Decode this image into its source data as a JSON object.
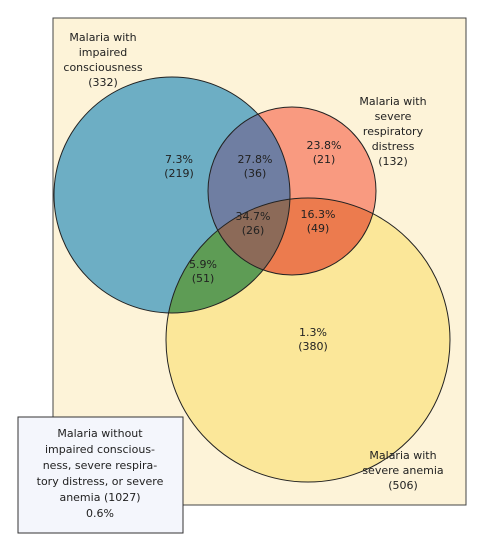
{
  "sets": [
    {
      "lines": [
        "Malaria with",
        "impaired",
        "consciousness",
        "(332)"
      ]
    },
    {
      "lines": [
        "Malaria with",
        "severe",
        "respiratory",
        "distress",
        "(132)"
      ]
    },
    {
      "lines": [
        "Malaria with",
        "severe anemia",
        "(506)"
      ]
    }
  ],
  "regions": [
    {
      "percent": "7.3%",
      "count": "(219)"
    },
    {
      "percent": "27.8%",
      "count": "(36)"
    },
    {
      "percent": "23.8%",
      "count": "(21)"
    },
    {
      "percent": "34.7%",
      "count": "(26)"
    },
    {
      "percent": "16.3%",
      "count": "(49)"
    },
    {
      "percent": "5.9%",
      "count": "(51)"
    },
    {
      "percent": "1.3%",
      "count": "(380)"
    }
  ],
  "outside": {
    "lines": [
      "Malaria without",
      "impaired conscious-",
      "ness, severe respira-",
      "tory distress, or severe",
      "anemia (1027)",
      "0.6%"
    ]
  }
}
